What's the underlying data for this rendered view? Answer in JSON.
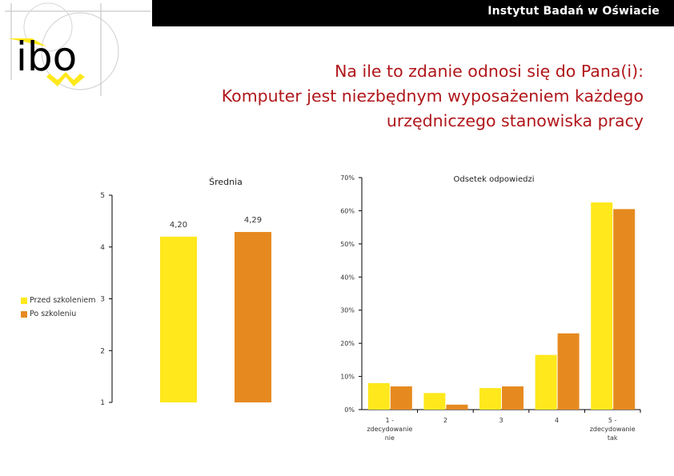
{
  "header": {
    "organization": "Instytut Badań w Oświacie",
    "logo_text": "ibo"
  },
  "title_lines": [
    "Na ile to zdanie odnosi się do Pana(i):",
    "Komputer jest niezbędnym wyposażeniem każdego",
    "urzędniczego stanowiska pracy"
  ],
  "colors": {
    "title": "#b0161a",
    "before": "#ffe81c",
    "after": "#e68a1f",
    "axis": "#000000"
  },
  "legend": [
    {
      "label": "Przed szkoleniem",
      "color": "#ffe81c"
    },
    {
      "label": "Po szkoleniu",
      "color": "#e68a1f"
    }
  ],
  "chart_data": [
    {
      "type": "bar",
      "title": "Średnia",
      "categories": [
        "Przed szkoleniem",
        "Po szkoleniu"
      ],
      "values": [
        4.2,
        4.29
      ],
      "value_labels": [
        "4,20",
        "4,29"
      ],
      "ylim": [
        1,
        5
      ],
      "yticks": [
        "1",
        "2",
        "3",
        "4",
        "5"
      ],
      "grid": false
    },
    {
      "type": "bar",
      "title": "Odsetek odpowiedzi",
      "categories": [
        [
          "1 -",
          "zdecydowanie",
          "nie"
        ],
        [
          "2"
        ],
        [
          "3"
        ],
        [
          "4"
        ],
        [
          "5 -",
          "zdecydowanie",
          "tak"
        ]
      ],
      "series": [
        {
          "name": "Przed szkoleniem",
          "values": [
            8,
            5,
            6.5,
            16.5,
            62.5
          ]
        },
        {
          "name": "Po szkoleniu",
          "values": [
            7,
            1.5,
            7,
            23,
            60.5
          ]
        }
      ],
      "ylim": [
        0,
        70
      ],
      "yticks": [
        "0%",
        "10%",
        "20%",
        "30%",
        "40%",
        "50%",
        "60%",
        "70%"
      ],
      "grid": false
    }
  ]
}
